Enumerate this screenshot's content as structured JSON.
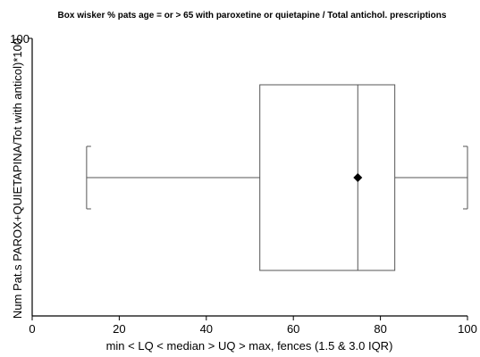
{
  "chart_data": {
    "type": "box",
    "title": "Box wisker % pats age = or > 65  with paroxetine or quietapine / Total antichol. prescriptions",
    "xlabel": "min < LQ < median > UQ > max, fences (1.5 & 3.0 IQR)",
    "ylabel": "Num Pat.s PAROX+QUIETAPINA/Tot with anticol)*100",
    "xlim": [
      0,
      100
    ],
    "xticks": [
      "0",
      "20",
      "40",
      "60",
      "80",
      "100"
    ],
    "yticks": [
      "100"
    ],
    "grid": false,
    "box": {
      "min": 12.5,
      "lower_quartile": 52.3,
      "median": 74.8,
      "upper_quartile": 83.3,
      "max": 100,
      "mean": 74.8
    },
    "colors": {
      "box_stroke": "#555555",
      "axis": "#000000",
      "marker": "#000000"
    }
  }
}
